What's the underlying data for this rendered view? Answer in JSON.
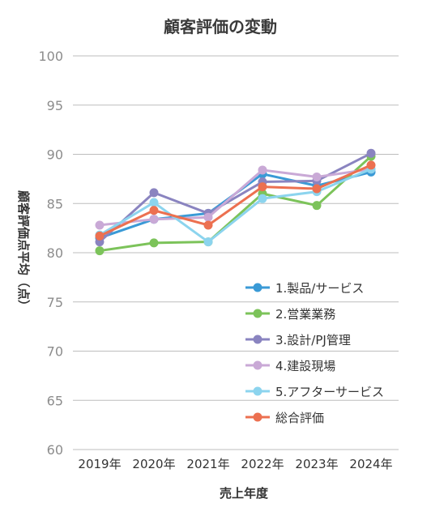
{
  "chart_data": {
    "type": "line",
    "title": "顧客評価の変動",
    "xlabel": "売上年度",
    "ylabel": "顧客評価点平均（点）",
    "categories": [
      "2019年",
      "2020年",
      "2021年",
      "2022年",
      "2023年",
      "2024年"
    ],
    "ylim": [
      60,
      100
    ],
    "yticks": [
      60,
      65,
      70,
      75,
      80,
      85,
      90,
      95,
      100
    ],
    "grid": true,
    "legend": "right",
    "series": [
      {
        "name": "1.製品/サービス",
        "color": "#3a9ad6",
        "values": [
          81.5,
          83.4,
          84.0,
          88.0,
          86.8,
          88.2
        ]
      },
      {
        "name": "2.営業業務",
        "color": "#7cc35a",
        "values": [
          80.2,
          81.0,
          81.1,
          86.0,
          84.8,
          89.8
        ]
      },
      {
        "name": "3.設計/PJ管理",
        "color": "#8a84c0",
        "values": [
          81.1,
          86.1,
          84.0,
          87.2,
          87.3,
          90.1
        ]
      },
      {
        "name": "4.建設現場",
        "color": "#c9a9d6",
        "values": [
          82.8,
          83.4,
          83.6,
          88.4,
          87.7,
          88.5
        ]
      },
      {
        "name": "5.アフターサービス",
        "color": "#8cd4ee",
        "values": [
          81.8,
          85.1,
          81.1,
          85.5,
          86.2,
          88.5
        ]
      },
      {
        "name": "総合評価",
        "color": "#ec7050",
        "values": [
          81.7,
          84.3,
          82.8,
          86.7,
          86.5,
          88.9
        ]
      }
    ]
  }
}
